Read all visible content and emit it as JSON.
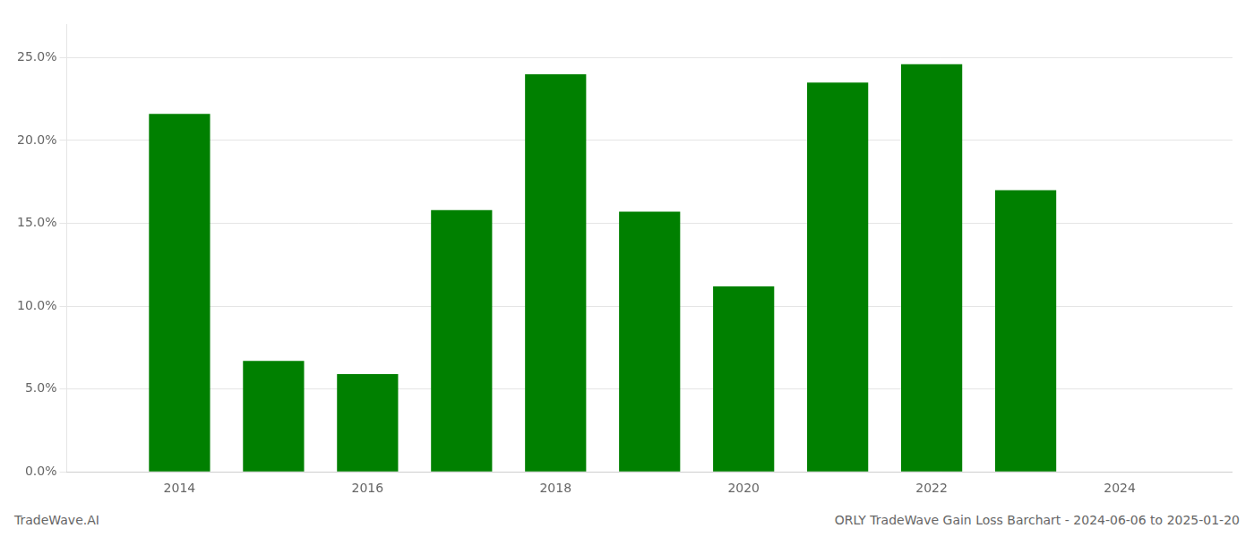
{
  "chart_data": {
    "type": "bar",
    "x": [
      2014,
      2015,
      2016,
      2017,
      2018,
      2019,
      2020,
      2021,
      2022,
      2023
    ],
    "values": [
      0.216,
      0.067,
      0.059,
      0.158,
      0.24,
      0.157,
      0.112,
      0.235,
      0.246,
      0.17
    ],
    "color": "#008000",
    "xlim": [
      2012.8,
      2025.2
    ],
    "xticks": [
      2014,
      2016,
      2018,
      2020,
      2022,
      2024
    ],
    "ylim": [
      0.0,
      0.27
    ],
    "yticks": [
      {
        "value": 0.0,
        "label": "0.0%"
      },
      {
        "value": 0.05,
        "label": "5.0%"
      },
      {
        "value": 0.1,
        "label": "10.0%"
      },
      {
        "value": 0.15,
        "label": "15.0%"
      },
      {
        "value": 0.2,
        "label": "20.0%"
      },
      {
        "value": 0.25,
        "label": "25.0%"
      }
    ],
    "grid": true,
    "annotations": [
      "TradeWave.AI",
      "ORLY TradeWave Gain Loss Barchart - 2024-06-06 to 2025-01-20"
    ]
  }
}
